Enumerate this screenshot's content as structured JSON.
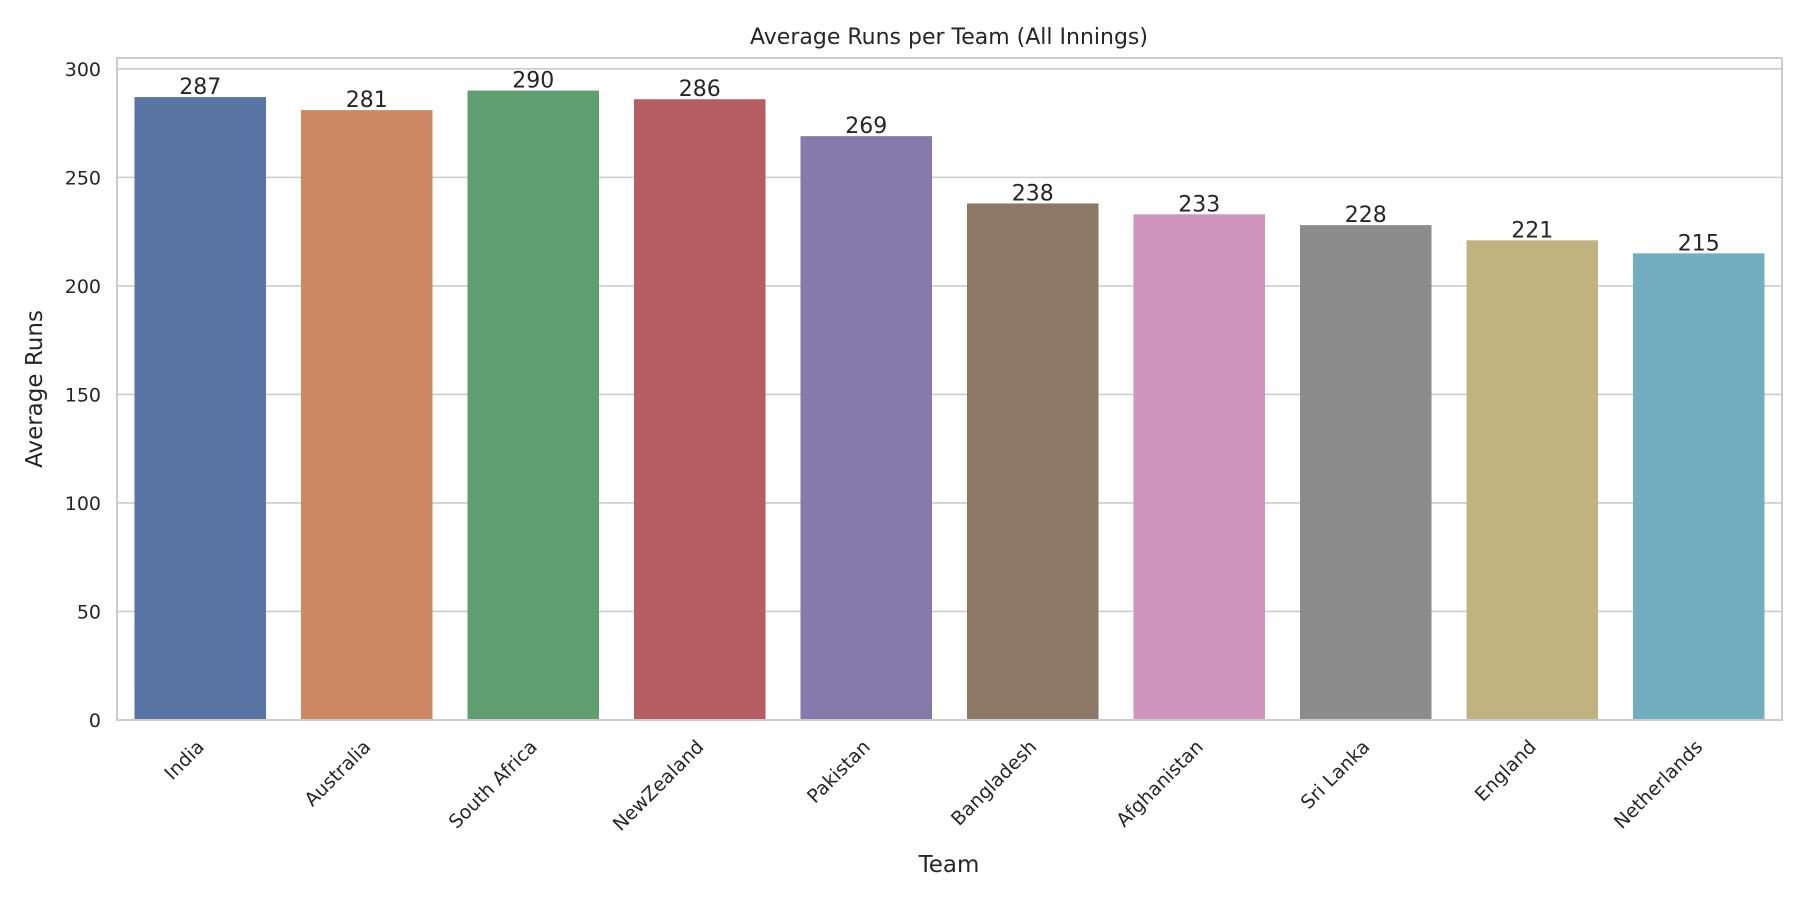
{
  "chart_data": {
    "type": "bar",
    "title": "Average Runs per Team (All Innings)",
    "xlabel": "Team",
    "ylabel": "Average Runs",
    "categories": [
      "India",
      "Australia",
      "South Africa",
      "NewZealand",
      "Pakistan",
      "Bangladesh",
      "Afghanistan",
      "Sri Lanka",
      "England",
      "Netherlands"
    ],
    "values": [
      287,
      281,
      290,
      286,
      269,
      238,
      233,
      228,
      221,
      215
    ],
    "data_labels": [
      "287",
      "281",
      "290",
      "286",
      "269",
      "238",
      "233",
      "228",
      "221",
      "215"
    ],
    "ylim": [
      0,
      305
    ],
    "yticks": [
      0,
      50,
      100,
      150,
      200,
      250,
      300
    ],
    "ytick_labels": [
      "0",
      "50",
      "100",
      "150",
      "200",
      "250",
      "300"
    ],
    "grid": "horizontal",
    "legend": "none",
    "colors": [
      "#5975a4",
      "#cc8963",
      "#5f9e6e",
      "#b55d60",
      "#857aab",
      "#8d7866",
      "#d095bf",
      "#8c8c8c",
      "#c1b37f",
      "#71aec0"
    ],
    "grid_color": "#cccccc",
    "axes_color": "#cccccc"
  }
}
